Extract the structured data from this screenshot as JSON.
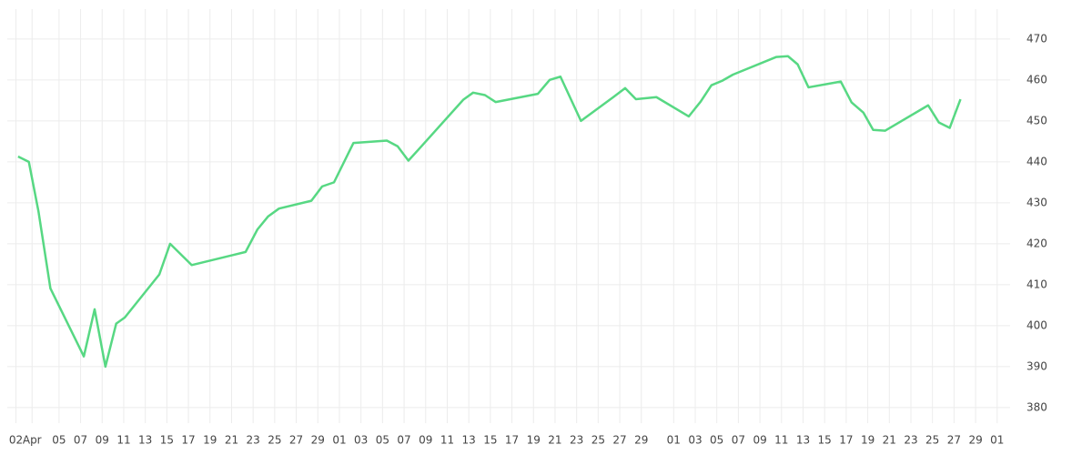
{
  "chart_data": {
    "type": "line",
    "x": [
      0.2,
      1.2,
      2.1,
      3.2,
      6.3,
      7.3,
      8.3,
      9.3,
      10.1,
      13.3,
      14.3,
      16.3,
      21.3,
      22.4,
      23.4,
      24.4,
      27.4,
      28.4,
      29.5,
      31.3,
      34.4,
      35.4,
      36.4,
      37.3,
      41.5,
      42.4,
      43.5,
      44.5,
      48.4,
      49.5,
      50.5,
      52.4,
      55.4,
      56.5,
      57.5,
      59.4,
      62.4,
      63.5,
      64.5,
      65.5,
      66.5,
      70.5,
      71.6,
      72.5,
      73.5,
      76.5,
      77.5,
      78.6,
      79.5,
      80.6,
      84.6,
      85.6,
      86.6,
      87.6
    ],
    "series": [
      {
        "color": "#57d883",
        "values": [
          441.3,
          440,
          427.8,
          409.1,
          392.5,
          404,
          390,
          400.5,
          402,
          412.5,
          420,
          414.8,
          418,
          423.5,
          426.7,
          428.6,
          430.5,
          434,
          435,
          444.6,
          445.2,
          443.8,
          440.3,
          442.9,
          455.2,
          456.9,
          456.3,
          454.6,
          456.6,
          460,
          460.8,
          450,
          455.8,
          458,
          455.3,
          455.8,
          451.1,
          454.7,
          458.7,
          459.8,
          461.3,
          465.6,
          465.8,
          463.8,
          458.2,
          459.6,
          454.5,
          452,
          447.8,
          447.6,
          453.8,
          449.6,
          448.3,
          455.3
        ]
      }
    ],
    "xlim": [
      -0.8,
      92.2
    ],
    "xticks": [
      {
        "value": 0,
        "label": "02"
      },
      {
        "value": 1.5,
        "label": "Apr"
      },
      {
        "value": 4,
        "label": "05"
      },
      {
        "value": 6,
        "label": "07"
      },
      {
        "value": 8,
        "label": "09"
      },
      {
        "value": 10,
        "label": "11"
      },
      {
        "value": 12,
        "label": "13"
      },
      {
        "value": 14,
        "label": "15"
      },
      {
        "value": 16,
        "label": "17"
      },
      {
        "value": 18,
        "label": "19"
      },
      {
        "value": 20,
        "label": "21"
      },
      {
        "value": 22,
        "label": "23"
      },
      {
        "value": 24,
        "label": "25"
      },
      {
        "value": 26,
        "label": "27"
      },
      {
        "value": 28,
        "label": "29"
      },
      {
        "value": 30,
        "label": "01"
      },
      {
        "value": 32,
        "label": "03"
      },
      {
        "value": 34,
        "label": "05"
      },
      {
        "value": 36,
        "label": "07"
      },
      {
        "value": 38,
        "label": "09"
      },
      {
        "value": 40,
        "label": "11"
      },
      {
        "value": 42,
        "label": "13"
      },
      {
        "value": 44,
        "label": "15"
      },
      {
        "value": 46,
        "label": "17"
      },
      {
        "value": 48,
        "label": "19"
      },
      {
        "value": 50,
        "label": "21"
      },
      {
        "value": 52,
        "label": "23"
      },
      {
        "value": 54,
        "label": "25"
      },
      {
        "value": 56,
        "label": "27"
      },
      {
        "value": 58,
        "label": "29"
      },
      {
        "value": 61,
        "label": "01"
      },
      {
        "value": 63,
        "label": "03"
      },
      {
        "value": 65,
        "label": "05"
      },
      {
        "value": 67,
        "label": "07"
      },
      {
        "value": 69,
        "label": "09"
      },
      {
        "value": 71,
        "label": "11"
      },
      {
        "value": 73,
        "label": "13"
      },
      {
        "value": 75,
        "label": "15"
      },
      {
        "value": 77,
        "label": "17"
      },
      {
        "value": 79,
        "label": "19"
      },
      {
        "value": 81,
        "label": "21"
      },
      {
        "value": 83,
        "label": "23"
      },
      {
        "value": 85,
        "label": "25"
      },
      {
        "value": 87,
        "label": "27"
      },
      {
        "value": 89,
        "label": "29"
      },
      {
        "value": 91,
        "label": "01"
      }
    ],
    "ylim": [
      376.2,
      477.3
    ],
    "yticks": [
      380,
      390,
      400,
      410,
      420,
      430,
      440,
      450,
      460,
      470
    ],
    "grid": true
  }
}
